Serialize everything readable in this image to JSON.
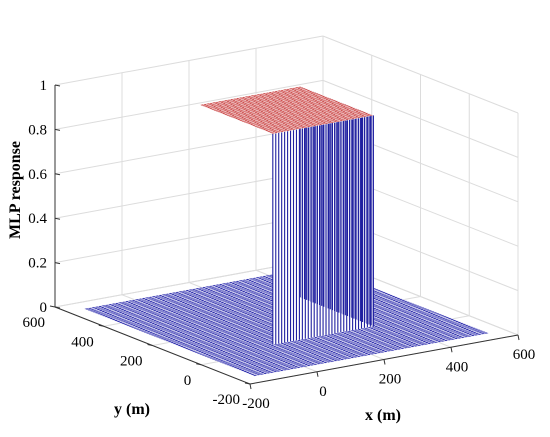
{
  "chart_data": {
    "type": "surface3d",
    "title": "",
    "xlabel": "x (m)",
    "ylabel": "y (m)",
    "zlabel": "MLP response",
    "xlim": [
      -200,
      600
    ],
    "ylim": [
      -200,
      600
    ],
    "zlim": [
      0,
      1
    ],
    "x_ticks": [
      "-200",
      "0",
      "200",
      "400",
      "600"
    ],
    "y_ticks": [
      "-200",
      "0",
      "200",
      "400",
      "600"
    ],
    "z_ticks": [
      "0",
      "0.2",
      "0.4",
      "0.6",
      "0.8",
      "1"
    ],
    "grid": true,
    "surface": {
      "grid_x_range": [
        -150,
        550
      ],
      "grid_y_range": [
        -150,
        550
      ],
      "plateau_x_range": [
        50,
        350
      ],
      "plateau_y_range": [
        50,
        350
      ],
      "plateau_value": 0.95,
      "floor_value": 0,
      "floor_color": "#1a1aa6",
      "top_color": "#c02020",
      "wall_line_color": "#2020a0",
      "wall_fill_color": "#ffffff"
    }
  }
}
